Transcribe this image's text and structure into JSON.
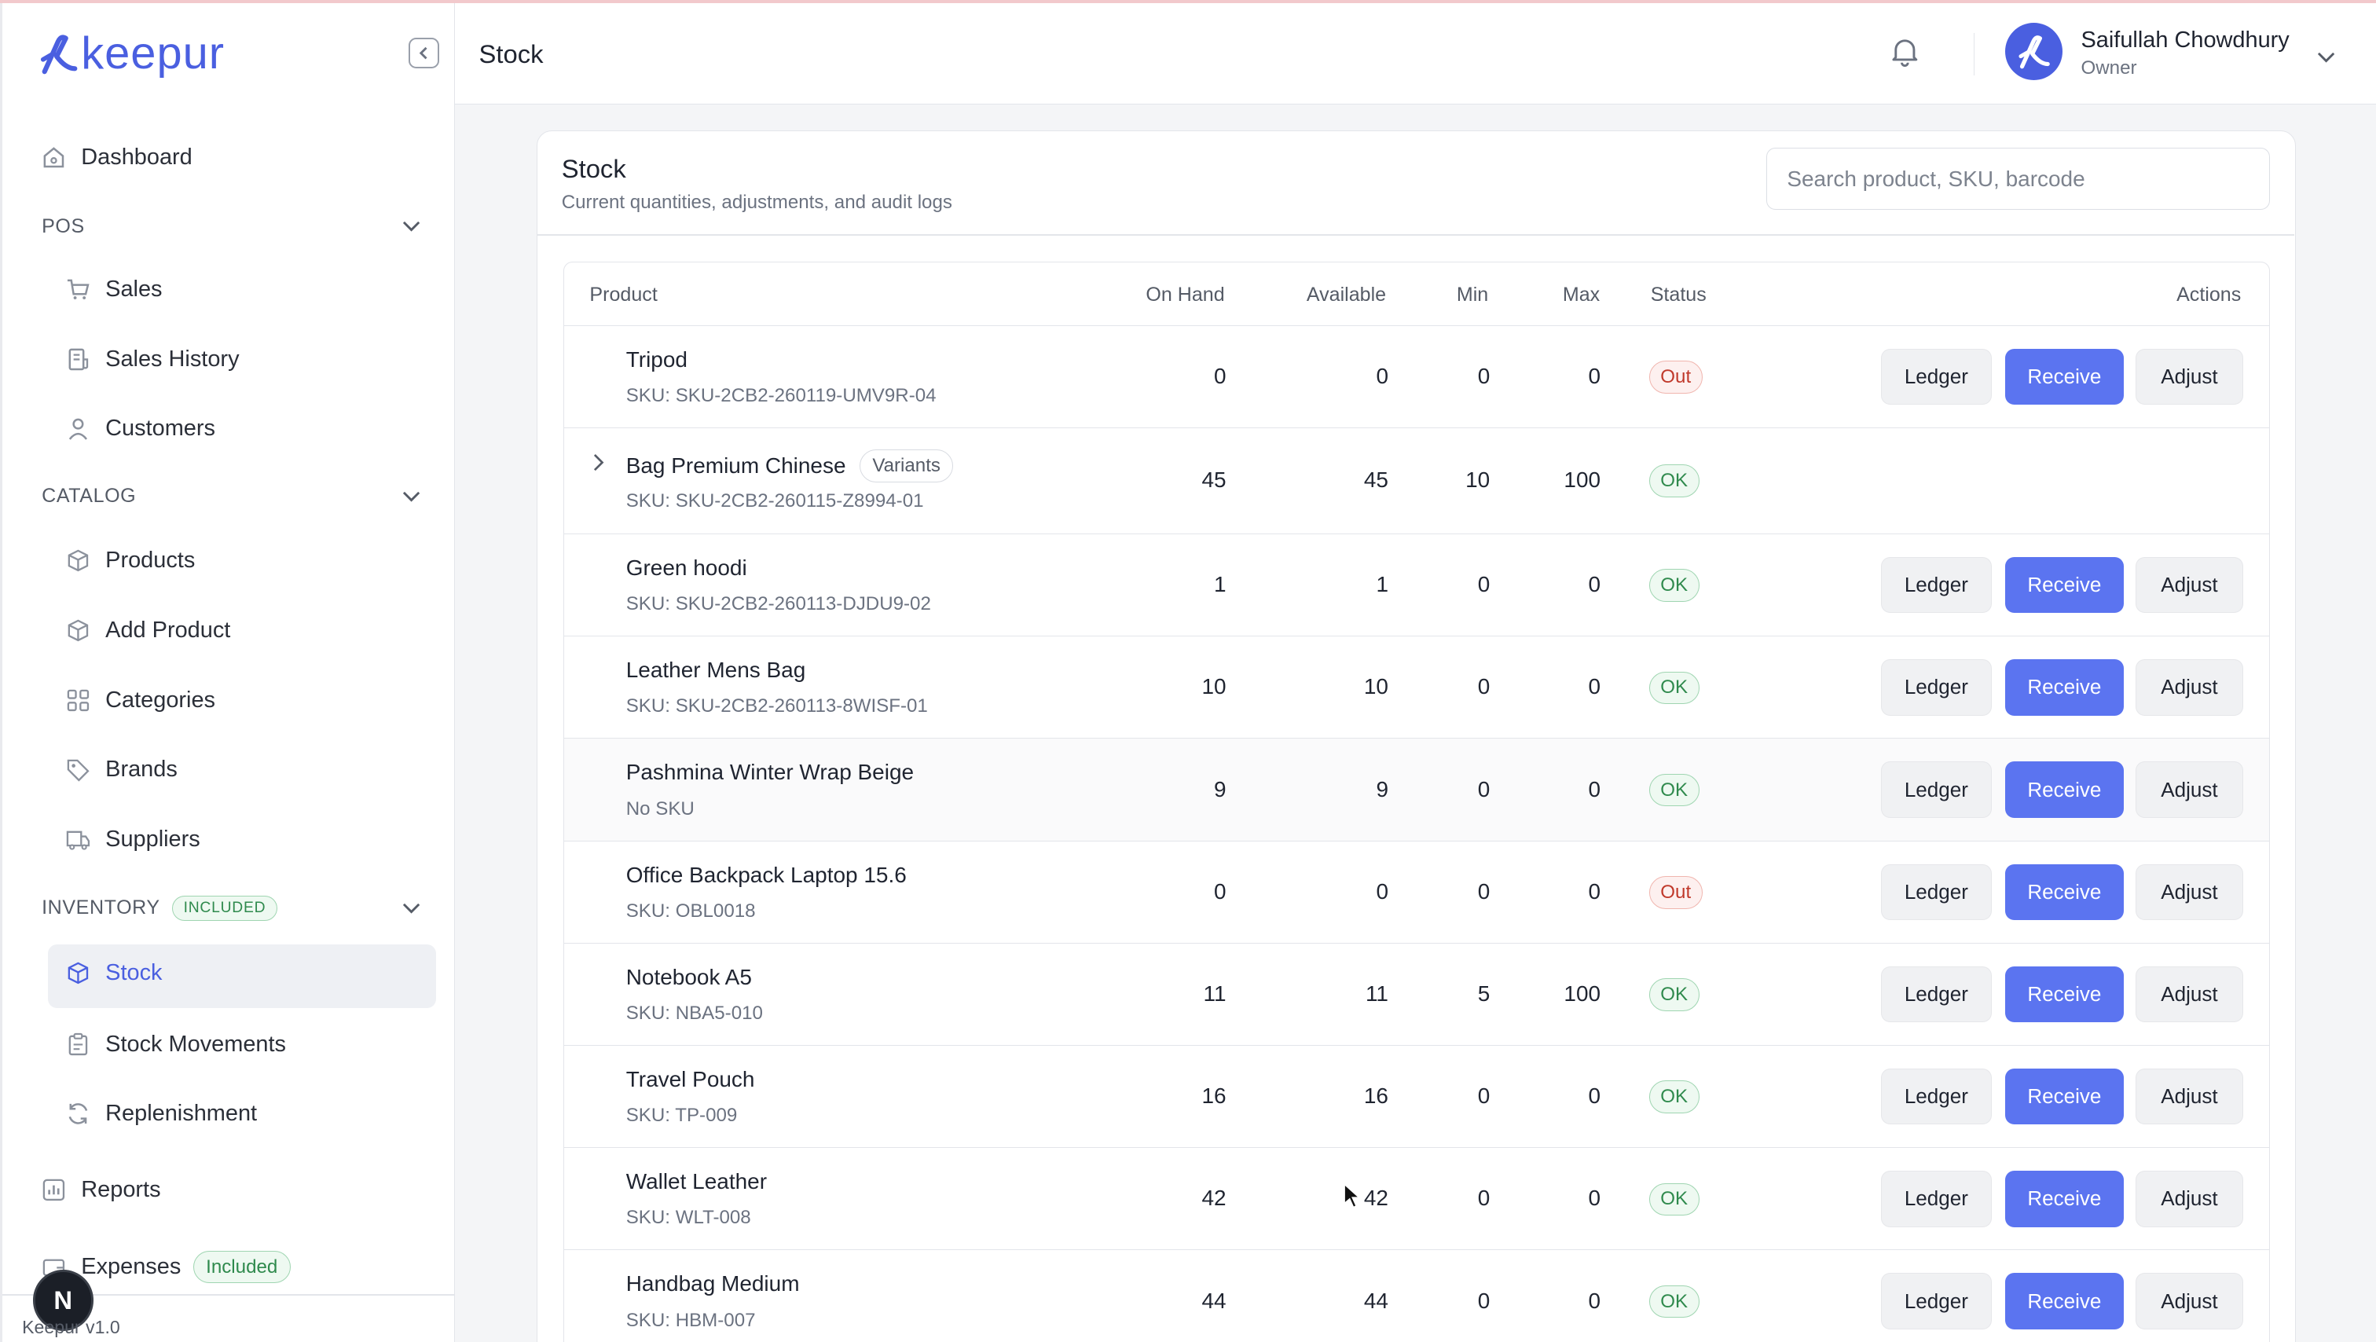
{
  "app": {
    "brand": "keepur",
    "version": "Keepur v1.0"
  },
  "sidebar": {
    "dashboard": "Dashboard",
    "pos_section": "POS",
    "pos_items": [
      "Sales",
      "Sales History",
      "Customers"
    ],
    "catalog_section": "CATALOG",
    "catalog_items": [
      "Products",
      "Add Product",
      "Categories",
      "Brands",
      "Suppliers"
    ],
    "inventory_section": "INVENTORY",
    "inventory_badge": "INCLUDED",
    "inventory_items": [
      "Stock",
      "Stock Movements",
      "Replenishment"
    ],
    "reports": "Reports",
    "expenses": "Expenses",
    "expenses_badge": "Included",
    "avatar_letter": "N"
  },
  "header": {
    "title": "Stock",
    "user_name": "Saifullah Chowdhury",
    "user_role": "Owner"
  },
  "card": {
    "title": "Stock",
    "subtitle": "Current quantities, adjustments, and audit logs",
    "search_placeholder": "Search product, SKU, barcode"
  },
  "table": {
    "columns": {
      "product": "Product",
      "on_hand": "On Hand",
      "available": "Available",
      "min": "Min",
      "max": "Max",
      "status": "Status",
      "actions": "Actions"
    },
    "actions": {
      "ledger": "Ledger",
      "receive": "Receive",
      "adjust": "Adjust"
    },
    "variants_label": "Variants",
    "rows": [
      {
        "name": "Tripod",
        "sku": "SKU: SKU-2CB2-260119-UMV9R-04",
        "on_hand": "0",
        "available": "0",
        "min": "0",
        "max": "0",
        "status": "Out"
      },
      {
        "name": "Bag Premium Chinese",
        "sku": "SKU: SKU-2CB2-260115-Z8994-01",
        "on_hand": "45",
        "available": "45",
        "min": "10",
        "max": "100",
        "status": "OK"
      },
      {
        "name": "Green hoodi",
        "sku": "SKU: SKU-2CB2-260113-DJDU9-02",
        "on_hand": "1",
        "available": "1",
        "min": "0",
        "max": "0",
        "status": "OK"
      },
      {
        "name": "Leather Mens Bag",
        "sku": "SKU: SKU-2CB2-260113-8WISF-01",
        "on_hand": "10",
        "available": "10",
        "min": "0",
        "max": "0",
        "status": "OK"
      },
      {
        "name": "Pashmina Winter Wrap Beige",
        "sku": "No SKU",
        "on_hand": "9",
        "available": "9",
        "min": "0",
        "max": "0",
        "status": "OK"
      },
      {
        "name": "Office Backpack Laptop 15.6",
        "sku": "SKU: OBL0018",
        "on_hand": "0",
        "available": "0",
        "min": "0",
        "max": "0",
        "status": "Out"
      },
      {
        "name": "Notebook A5",
        "sku": "SKU: NBA5-010",
        "on_hand": "11",
        "available": "11",
        "min": "5",
        "max": "100",
        "status": "OK"
      },
      {
        "name": "Travel Pouch",
        "sku": "SKU: TP-009",
        "on_hand": "16",
        "available": "16",
        "min": "0",
        "max": "0",
        "status": "OK"
      },
      {
        "name": "Wallet Leather",
        "sku": "SKU: WLT-008",
        "on_hand": "42",
        "available": "42",
        "min": "0",
        "max": "0",
        "status": "OK"
      },
      {
        "name": "Handbag Medium",
        "sku": "SKU: HBM-007",
        "on_hand": "44",
        "available": "44",
        "min": "0",
        "max": "0",
        "status": "OK"
      }
    ]
  },
  "colors": {
    "accent": "#4a5fe0",
    "receive_button": "#5b74f0",
    "ok_green": "#2f8a4d",
    "out_red": "#c0392b"
  }
}
